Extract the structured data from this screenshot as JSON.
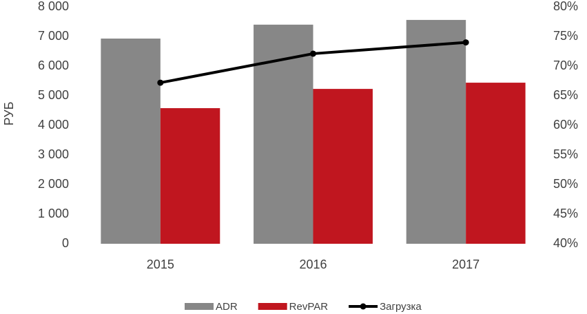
{
  "chart_data": {
    "type": "bar",
    "y_label": "РУБ",
    "categories": [
      "2015",
      "2016",
      "2017"
    ],
    "series": [
      {
        "name": "ADR",
        "type": "bar",
        "color": "#878787",
        "values": [
          6930,
          7400,
          7560
        ]
      },
      {
        "name": "RevPAR",
        "type": "bar",
        "color": "#c0161f",
        "values": [
          4580,
          5230,
          5440
        ]
      },
      {
        "name": "Загрузка",
        "type": "line",
        "axis": "y2",
        "color": "#000000",
        "values": [
          67.2,
          72.1,
          74.0
        ]
      }
    ],
    "ylim": [
      0,
      8000
    ],
    "yticks": [
      0,
      {
        "value": 1000,
        "label": "1 000"
      },
      {
        "value": 2000,
        "label": "2 000"
      },
      {
        "value": 3000,
        "label": "3 000"
      },
      {
        "value": 4000,
        "label": "4 000"
      },
      {
        "value": 5000,
        "label": "5 000"
      },
      {
        "value": 6000,
        "label": "6 000"
      },
      {
        "value": 7000,
        "label": "7 000"
      },
      {
        "value": 8000,
        "label": "8 000"
      }
    ],
    "y2lim": [
      40,
      80
    ],
    "y2ticks": [
      {
        "value": 40,
        "label": "40%"
      },
      {
        "value": 45,
        "label": "45%"
      },
      {
        "value": 50,
        "label": "50%"
      },
      {
        "value": 55,
        "label": "55%"
      },
      {
        "value": 60,
        "label": "60%"
      },
      {
        "value": 65,
        "label": "65%"
      },
      {
        "value": 70,
        "label": "70%"
      },
      {
        "value": 75,
        "label": "75%"
      },
      {
        "value": 80,
        "label": "80%"
      }
    ],
    "legend": "bottom",
    "grid": false
  }
}
